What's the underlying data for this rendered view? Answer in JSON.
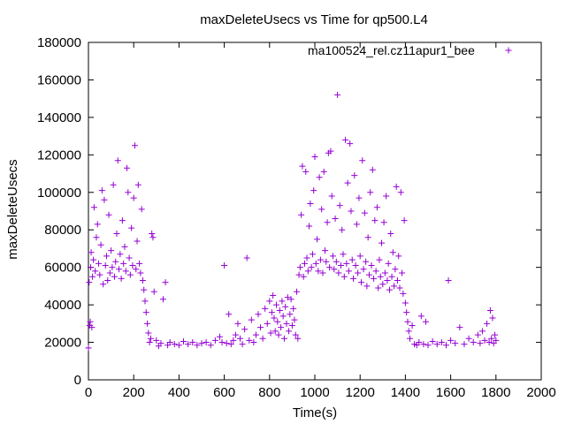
{
  "chart_data": {
    "type": "scatter",
    "title": "maxDeleteUsecs vs Time for qp500.L4",
    "xlabel": "Time(s)",
    "ylabel": "maxDeleteUsecs",
    "xlim": [
      0,
      2000
    ],
    "ylim": [
      0,
      180000
    ],
    "x_ticks": [
      "0",
      "200",
      "400",
      "600",
      "800",
      "1000",
      "1200",
      "1400",
      "1600",
      "1800",
      "2000"
    ],
    "y_ticks": [
      "0",
      "20000",
      "40000",
      "60000",
      "80000",
      "100000",
      "120000",
      "140000",
      "160000",
      "180000"
    ],
    "grid": false,
    "legend_position": "top-right",
    "marker": "plus",
    "color": "#9400d3",
    "series": [
      {
        "name": "ma100524_rel.cz11apur1_bee",
        "points": [
          [
            0,
            17000
          ],
          [
            3,
            52000
          ],
          [
            5,
            29000
          ],
          [
            8,
            31000
          ],
          [
            10,
            60000
          ],
          [
            12,
            68000
          ],
          [
            15,
            28000
          ],
          [
            18,
            55000
          ],
          [
            22,
            64000
          ],
          [
            25,
            92000
          ],
          [
            30,
            58000
          ],
          [
            35,
            76000
          ],
          [
            40,
            83000
          ],
          [
            45,
            62000
          ],
          [
            50,
            56000
          ],
          [
            55,
            72000
          ],
          [
            60,
            101000
          ],
          [
            65,
            51000
          ],
          [
            70,
            96000
          ],
          [
            75,
            61000
          ],
          [
            80,
            66000
          ],
          [
            85,
            53000
          ],
          [
            90,
            88000
          ],
          [
            95,
            57000
          ],
          [
            100,
            69000
          ],
          [
            105,
            60000
          ],
          [
            110,
            104000
          ],
          [
            115,
            55000
          ],
          [
            120,
            63000
          ],
          [
            125,
            78000
          ],
          [
            130,
            117000
          ],
          [
            135,
            59000
          ],
          [
            140,
            67000
          ],
          [
            145,
            54000
          ],
          [
            150,
            85000
          ],
          [
            155,
            62000
          ],
          [
            160,
            71000
          ],
          [
            165,
            58000
          ],
          [
            170,
            113000
          ],
          [
            175,
            100000
          ],
          [
            180,
            65000
          ],
          [
            185,
            56000
          ],
          [
            190,
            81000
          ],
          [
            195,
            61000
          ],
          [
            200,
            97000
          ],
          [
            205,
            125000
          ],
          [
            210,
            59000
          ],
          [
            215,
            74000
          ],
          [
            220,
            104000
          ],
          [
            225,
            62000
          ],
          [
            230,
            57000
          ],
          [
            235,
            91000
          ],
          [
            240,
            53000
          ],
          [
            245,
            48000
          ],
          [
            250,
            42000
          ],
          [
            255,
            36000
          ],
          [
            260,
            30000
          ],
          [
            265,
            25000
          ],
          [
            270,
            20000
          ],
          [
            275,
            22000
          ],
          [
            280,
            78000
          ],
          [
            285,
            76000
          ],
          [
            290,
            47000
          ],
          [
            300,
            21000
          ],
          [
            310,
            18000
          ],
          [
            320,
            19500
          ],
          [
            330,
            43000
          ],
          [
            340,
            52000
          ],
          [
            350,
            18500
          ],
          [
            360,
            20000
          ],
          [
            380,
            19000
          ],
          [
            400,
            18500
          ],
          [
            420,
            20500
          ],
          [
            440,
            19000
          ],
          [
            460,
            20000
          ],
          [
            480,
            18500
          ],
          [
            500,
            19500
          ],
          [
            520,
            20000
          ],
          [
            540,
            18500
          ],
          [
            560,
            21000
          ],
          [
            580,
            23000
          ],
          [
            590,
            20000
          ],
          [
            600,
            61000
          ],
          [
            610,
            19500
          ],
          [
            620,
            35000
          ],
          [
            630,
            19000
          ],
          [
            640,
            21000
          ],
          [
            650,
            24000
          ],
          [
            660,
            30000
          ],
          [
            670,
            22000
          ],
          [
            680,
            19000
          ],
          [
            690,
            27000
          ],
          [
            700,
            65000
          ],
          [
            710,
            21000
          ],
          [
            720,
            32000
          ],
          [
            730,
            20000
          ],
          [
            740,
            24000
          ],
          [
            750,
            35000
          ],
          [
            760,
            28000
          ],
          [
            770,
            22000
          ],
          [
            780,
            38000
          ],
          [
            790,
            30000
          ],
          [
            800,
            42000
          ],
          [
            805,
            25000
          ],
          [
            810,
            36000
          ],
          [
            815,
            45000
          ],
          [
            820,
            33000
          ],
          [
            825,
            26000
          ],
          [
            830,
            40000
          ],
          [
            835,
            31000
          ],
          [
            840,
            24000
          ],
          [
            845,
            37000
          ],
          [
            850,
            28000
          ],
          [
            855,
            42000
          ],
          [
            860,
            34000
          ],
          [
            865,
            22000
          ],
          [
            870,
            39000
          ],
          [
            875,
            30000
          ],
          [
            880,
            44000
          ],
          [
            885,
            26000
          ],
          [
            890,
            35000
          ],
          [
            895,
            43000
          ],
          [
            900,
            29000
          ],
          [
            905,
            38000
          ],
          [
            910,
            32000
          ],
          [
            915,
            24000
          ],
          [
            920,
            47000
          ],
          [
            925,
            22000
          ],
          [
            930,
            56000
          ],
          [
            935,
            60000
          ],
          [
            940,
            88000
          ],
          [
            945,
            114000
          ],
          [
            950,
            55000
          ],
          [
            955,
            62000
          ],
          [
            960,
            111000
          ],
          [
            965,
            65000
          ],
          [
            970,
            58000
          ],
          [
            975,
            82000
          ],
          [
            980,
            94000
          ],
          [
            985,
            60000
          ],
          [
            990,
            67000
          ],
          [
            995,
            101000
          ],
          [
            1000,
            119000
          ],
          [
            1005,
            62000
          ],
          [
            1010,
            75000
          ],
          [
            1015,
            58000
          ],
          [
            1020,
            108000
          ],
          [
            1025,
            64000
          ],
          [
            1030,
            91000
          ],
          [
            1035,
            57000
          ],
          [
            1040,
            111000
          ],
          [
            1045,
            69000
          ],
          [
            1050,
            63000
          ],
          [
            1055,
            84000
          ],
          [
            1060,
            121000
          ],
          [
            1065,
            60000
          ],
          [
            1070,
            122000
          ],
          [
            1075,
            98000
          ],
          [
            1080,
            66000
          ],
          [
            1085,
            59000
          ],
          [
            1090,
            86000
          ],
          [
            1095,
            63000
          ],
          [
            1100,
            152000
          ],
          [
            1105,
            57000
          ],
          [
            1110,
            93000
          ],
          [
            1115,
            61000
          ],
          [
            1120,
            80000
          ],
          [
            1125,
            67000
          ],
          [
            1130,
            55000
          ],
          [
            1135,
            128000
          ],
          [
            1140,
            62000
          ],
          [
            1145,
            105000
          ],
          [
            1150,
            58000
          ],
          [
            1155,
            126000
          ],
          [
            1160,
            90000
          ],
          [
            1165,
            64000
          ],
          [
            1170,
            54000
          ],
          [
            1175,
            109000
          ],
          [
            1180,
            61000
          ],
          [
            1185,
            83000
          ],
          [
            1190,
            57000
          ],
          [
            1195,
            97000
          ],
          [
            1200,
            66000
          ],
          [
            1205,
            52000
          ],
          [
            1210,
            117000
          ],
          [
            1215,
            59000
          ],
          [
            1220,
            89000
          ],
          [
            1225,
            63000
          ],
          [
            1230,
            50000
          ],
          [
            1235,
            76000
          ],
          [
            1240,
            56000
          ],
          [
            1245,
            100000
          ],
          [
            1250,
            61000
          ],
          [
            1255,
            112000
          ],
          [
            1260,
            54000
          ],
          [
            1265,
            85000
          ],
          [
            1270,
            58000
          ],
          [
            1275,
            92000
          ],
          [
            1280,
            49000
          ],
          [
            1285,
            64000
          ],
          [
            1290,
            55000
          ],
          [
            1295,
            73000
          ],
          [
            1300,
            51000
          ],
          [
            1305,
            84000
          ],
          [
            1310,
            57000
          ],
          [
            1315,
            98000
          ],
          [
            1320,
            53000
          ],
          [
            1325,
            62000
          ],
          [
            1330,
            48000
          ],
          [
            1335,
            78000
          ],
          [
            1340,
            55000
          ],
          [
            1345,
            68000
          ],
          [
            1350,
            50000
          ],
          [
            1355,
            59000
          ],
          [
            1360,
            103000
          ],
          [
            1365,
            53000
          ],
          [
            1370,
            66000
          ],
          [
            1375,
            49000
          ],
          [
            1380,
            100000
          ],
          [
            1385,
            57000
          ],
          [
            1390,
            46000
          ],
          [
            1395,
            85000
          ],
          [
            1400,
            41000
          ],
          [
            1405,
            36000
          ],
          [
            1410,
            31000
          ],
          [
            1415,
            26000
          ],
          [
            1420,
            22000
          ],
          [
            1430,
            29000
          ],
          [
            1440,
            19000
          ],
          [
            1450,
            18500
          ],
          [
            1460,
            20000
          ],
          [
            1470,
            34000
          ],
          [
            1480,
            19000
          ],
          [
            1490,
            31000
          ],
          [
            1500,
            18500
          ],
          [
            1520,
            20500
          ],
          [
            1540,
            19000
          ],
          [
            1560,
            20000
          ],
          [
            1580,
            18500
          ],
          [
            1590,
            53000
          ],
          [
            1600,
            21000
          ],
          [
            1620,
            19500
          ],
          [
            1640,
            28000
          ],
          [
            1660,
            19000
          ],
          [
            1680,
            22000
          ],
          [
            1700,
            20000
          ],
          [
            1720,
            24000
          ],
          [
            1730,
            19500
          ],
          [
            1740,
            26000
          ],
          [
            1750,
            21000
          ],
          [
            1760,
            30000
          ],
          [
            1770,
            20000
          ],
          [
            1775,
            37000
          ],
          [
            1780,
            22000
          ],
          [
            1785,
            33000
          ],
          [
            1790,
            19500
          ],
          [
            1795,
            24000
          ],
          [
            1800,
            21000
          ]
        ]
      }
    ]
  }
}
